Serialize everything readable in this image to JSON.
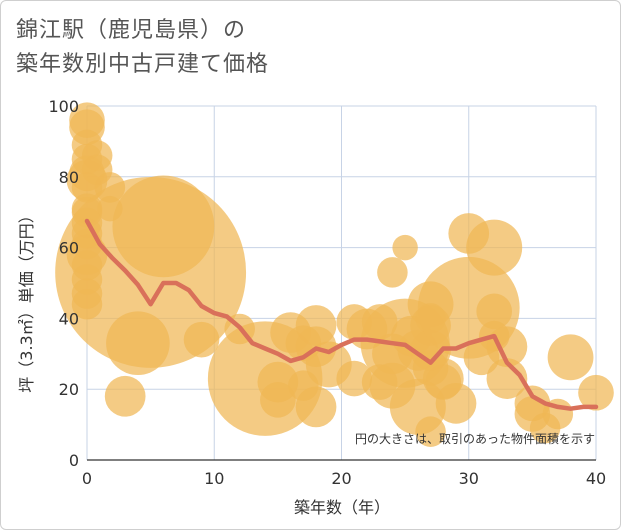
{
  "title_line1": "錦江駅（鹿児島県）の",
  "title_line2": "築年数別中古戸建て価格",
  "note": "円の大きさは、取引のあった物件面積を示す",
  "chart_data": {
    "type": "scatter",
    "xlabel": "築年数（年）",
    "ylabel": "坪（3.3㎡）単価（万円）",
    "xlim": [
      0,
      40
    ],
    "ylim": [
      0,
      100
    ],
    "xticks": [
      0,
      10,
      20,
      30,
      40
    ],
    "yticks": [
      0,
      20,
      40,
      60,
      80,
      100
    ],
    "bubble_color": "#f0b755",
    "line_color": "#d9705a",
    "bubbles": [
      {
        "x": 0,
        "y": 96,
        "r": 1.4
      },
      {
        "x": 0,
        "y": 94,
        "r": 1.4
      },
      {
        "x": 0,
        "y": 89,
        "r": 1.2
      },
      {
        "x": 0,
        "y": 85,
        "r": 1.2
      },
      {
        "x": 0,
        "y": 81,
        "r": 1.4
      },
      {
        "x": 0,
        "y": 79,
        "r": 1.6
      },
      {
        "x": 0,
        "y": 77,
        "r": 1.2
      },
      {
        "x": 0,
        "y": 71,
        "r": 1.2
      },
      {
        "x": 0,
        "y": 70,
        "r": 1.2
      },
      {
        "x": 0,
        "y": 67,
        "r": 1.2
      },
      {
        "x": 0,
        "y": 64,
        "r": 1.2
      },
      {
        "x": 0,
        "y": 61,
        "r": 1.2
      },
      {
        "x": 0,
        "y": 58,
        "r": 1.6
      },
      {
        "x": 0,
        "y": 55,
        "r": 1.2
      },
      {
        "x": 0,
        "y": 51,
        "r": 1.2
      },
      {
        "x": 0,
        "y": 47,
        "r": 1.2
      },
      {
        "x": 0,
        "y": 44,
        "r": 1.2
      },
      {
        "x": 0.8,
        "y": 86,
        "r": 1.2
      },
      {
        "x": 0.8,
        "y": 82,
        "r": 1.2
      },
      {
        "x": 1.8,
        "y": 77,
        "r": 1.2
      },
      {
        "x": 1.8,
        "y": 71,
        "r": 1.0
      },
      {
        "x": 3,
        "y": 18,
        "r": 1.6
      },
      {
        "x": 4,
        "y": 33,
        "r": 2.5
      },
      {
        "x": 5,
        "y": 53,
        "r": 7.5
      },
      {
        "x": 6,
        "y": 66,
        "r": 4.0
      },
      {
        "x": 9,
        "y": 34,
        "r": 1.4
      },
      {
        "x": 12,
        "y": 37,
        "r": 1.2
      },
      {
        "x": 14,
        "y": 23,
        "r": 4.5
      },
      {
        "x": 15,
        "y": 22,
        "r": 1.6
      },
      {
        "x": 15,
        "y": 17,
        "r": 1.4
      },
      {
        "x": 16,
        "y": 36,
        "r": 1.6
      },
      {
        "x": 17,
        "y": 33,
        "r": 1.4
      },
      {
        "x": 17,
        "y": 21,
        "r": 1.2
      },
      {
        "x": 18,
        "y": 38,
        "r": 1.6
      },
      {
        "x": 18,
        "y": 32,
        "r": 1.6
      },
      {
        "x": 18,
        "y": 15,
        "r": 1.6
      },
      {
        "x": 19,
        "y": 27,
        "r": 1.8
      },
      {
        "x": 21,
        "y": 39,
        "r": 1.4
      },
      {
        "x": 21,
        "y": 23,
        "r": 1.4
      },
      {
        "x": 22,
        "y": 37,
        "r": 1.6
      },
      {
        "x": 23,
        "y": 39,
        "r": 1.4
      },
      {
        "x": 23,
        "y": 22,
        "r": 1.4
      },
      {
        "x": 24,
        "y": 53,
        "r": 1.2
      },
      {
        "x": 24,
        "y": 30,
        "r": 1.6
      },
      {
        "x": 24,
        "y": 21,
        "r": 1.8
      },
      {
        "x": 25,
        "y": 60,
        "r": 1.0
      },
      {
        "x": 25,
        "y": 33,
        "r": 3.5
      },
      {
        "x": 25.5,
        "y": 35,
        "r": 1.6
      },
      {
        "x": 26,
        "y": 31,
        "r": 1.6
      },
      {
        "x": 26,
        "y": 15,
        "r": 2.2
      },
      {
        "x": 27,
        "y": 44,
        "r": 1.8
      },
      {
        "x": 27,
        "y": 40,
        "r": 1.2
      },
      {
        "x": 27,
        "y": 38,
        "r": 1.6
      },
      {
        "x": 27,
        "y": 31,
        "r": 1.6
      },
      {
        "x": 27,
        "y": 26,
        "r": 1.4
      },
      {
        "x": 27,
        "y": 8,
        "r": 1.2
      },
      {
        "x": 28,
        "y": 23,
        "r": 1.6
      },
      {
        "x": 28,
        "y": 22,
        "r": 1.4
      },
      {
        "x": 29,
        "y": 16,
        "r": 1.6
      },
      {
        "x": 30,
        "y": 64,
        "r": 1.6
      },
      {
        "x": 30,
        "y": 43,
        "r": 4.0
      },
      {
        "x": 31,
        "y": 29,
        "r": 1.4
      },
      {
        "x": 32,
        "y": 60,
        "r": 2.2
      },
      {
        "x": 32,
        "y": 42,
        "r": 1.4
      },
      {
        "x": 32,
        "y": 35,
        "r": 1.2
      },
      {
        "x": 33,
        "y": 32,
        "r": 1.6
      },
      {
        "x": 33,
        "y": 23,
        "r": 1.6
      },
      {
        "x": 35,
        "y": 16,
        "r": 1.4
      },
      {
        "x": 35,
        "y": 13,
        "r": 1.4
      },
      {
        "x": 36,
        "y": 9,
        "r": 1.2
      },
      {
        "x": 37,
        "y": 13,
        "r": 1.2
      },
      {
        "x": 38,
        "y": 29,
        "r": 1.8
      },
      {
        "x": 40,
        "y": 19,
        "r": 1.4
      }
    ],
    "trend": {
      "x": [
        0,
        1,
        2,
        3,
        4,
        5,
        6,
        7,
        8,
        9,
        10,
        11,
        12,
        13,
        14,
        15,
        16,
        17,
        18,
        19,
        20,
        21,
        22,
        23,
        24,
        25,
        26,
        27,
        28,
        29,
        30,
        31,
        32,
        33,
        34,
        35,
        36,
        37,
        38,
        39,
        40
      ],
      "y": [
        67.5,
        61,
        57,
        53.5,
        49.5,
        44,
        50,
        50,
        48,
        43.5,
        41.5,
        40.5,
        37.5,
        33,
        31.5,
        30,
        28,
        29,
        31.5,
        30.5,
        32.5,
        34,
        34,
        33.5,
        33,
        32.5,
        30,
        27.5,
        31.5,
        31.5,
        33,
        34,
        35,
        27.5,
        24,
        18,
        16,
        15,
        14.5,
        15,
        15
      ]
    }
  }
}
